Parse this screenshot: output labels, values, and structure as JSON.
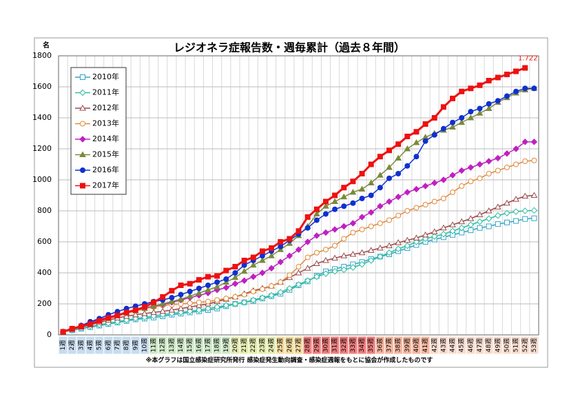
{
  "chart_data": {
    "type": "line",
    "title": "レジオネラ症報告数・週毎累計（過去８年間）",
    "y_unit": "名",
    "footnote": "※本グラフは国立感染症研究所発行 感染症発生動向調査・感染症週報をもとに協会が作成したものです",
    "categories": [
      "1週",
      "2週",
      "3週",
      "4週",
      "5週",
      "6週",
      "7週",
      "8週",
      "9週",
      "10週",
      "11週",
      "12週",
      "13週",
      "14週",
      "15週",
      "16週",
      "17週",
      "18週",
      "19週",
      "20週",
      "21週",
      "22週",
      "23週",
      "24週",
      "25週",
      "26週",
      "27週",
      "28週",
      "29週",
      "30週",
      "31週",
      "32週",
      "33週",
      "34週",
      "35週",
      "36週",
      "37週",
      "38週",
      "39週",
      "40週",
      "41週",
      "42週",
      "43週",
      "44週",
      "45週",
      "46週",
      "47週",
      "48週",
      "49週",
      "50週",
      "51週",
      "52週",
      "53週"
    ],
    "ylim": [
      0,
      1800
    ],
    "yticks": [
      0,
      200,
      400,
      600,
      800,
      1000,
      1200,
      1400,
      1600,
      1800
    ],
    "grid": true,
    "legend": "upper left",
    "series": [
      {
        "name": "2010年",
        "color": "#33a6c8",
        "marker": "square",
        "filled": false,
        "values": [
          20,
          30,
          40,
          50,
          60,
          70,
          80,
          90,
          100,
          105,
          112,
          120,
          130,
          137,
          145,
          152,
          160,
          170,
          185,
          200,
          210,
          220,
          235,
          250,
          265,
          290,
          320,
          345,
          380,
          410,
          425,
          440,
          455,
          470,
          490,
          505,
          520,
          540,
          560,
          580,
          600,
          615,
          630,
          645,
          660,
          675,
          690,
          700,
          715,
          725,
          735,
          748,
          752
        ]
      },
      {
        "name": "2011年",
        "color": "#2fbf9f",
        "marker": "diamond",
        "filled": false,
        "values": [
          20,
          30,
          42,
          55,
          65,
          75,
          85,
          95,
          105,
          113,
          122,
          130,
          138,
          145,
          152,
          160,
          170,
          180,
          190,
          200,
          210,
          225,
          240,
          255,
          275,
          300,
          325,
          350,
          375,
          395,
          410,
          420,
          435,
          455,
          480,
          505,
          530,
          555,
          575,
          600,
          620,
          635,
          650,
          670,
          690,
          710,
          730,
          750,
          770,
          785,
          795,
          800,
          803
        ]
      },
      {
        "name": "2012年",
        "color": "#9a4a4a",
        "marker": "triangle",
        "filled": false,
        "values": [
          20,
          35,
          50,
          65,
          80,
          95,
          110,
          120,
          130,
          138,
          145,
          152,
          160,
          170,
          180,
          190,
          200,
          215,
          230,
          245,
          265,
          285,
          300,
          315,
          340,
          370,
          400,
          430,
          460,
          480,
          495,
          510,
          520,
          530,
          545,
          560,
          575,
          595,
          610,
          625,
          645,
          665,
          690,
          710,
          730,
          750,
          775,
          800,
          825,
          850,
          875,
          895,
          900
        ]
      },
      {
        "name": "2013年",
        "color": "#e08a3c",
        "marker": "circle",
        "filled": false,
        "values": [
          20,
          40,
          60,
          80,
          100,
          115,
          125,
          140,
          160,
          170,
          180,
          190,
          195,
          200,
          205,
          210,
          215,
          225,
          235,
          245,
          260,
          280,
          295,
          315,
          340,
          385,
          440,
          500,
          530,
          550,
          575,
          620,
          660,
          680,
          700,
          720,
          740,
          770,
          800,
          820,
          840,
          860,
          880,
          920,
          960,
          990,
          1010,
          1040,
          1060,
          1080,
          1100,
          1120,
          1125
        ]
      },
      {
        "name": "2014年",
        "color": "#c020c0",
        "marker": "diamond",
        "filled": true,
        "values": [
          20,
          40,
          60,
          80,
          100,
          115,
          130,
          145,
          160,
          175,
          185,
          195,
          210,
          225,
          240,
          255,
          270,
          290,
          305,
          330,
          350,
          375,
          400,
          430,
          470,
          510,
          550,
          600,
          640,
          660,
          680,
          700,
          720,
          760,
          790,
          830,
          860,
          890,
          920,
          940,
          960,
          980,
          1000,
          1030,
          1060,
          1080,
          1100,
          1120,
          1140,
          1170,
          1200,
          1245,
          1245
        ]
      },
      {
        "name": "2015年",
        "color": "#7a8a3a",
        "marker": "triangle",
        "filled": true,
        "values": [
          20,
          40,
          60,
          75,
          90,
          105,
          125,
          140,
          155,
          170,
          185,
          200,
          215,
          230,
          250,
          270,
          290,
          310,
          340,
          370,
          410,
          450,
          480,
          510,
          550,
          590,
          640,
          700,
          780,
          830,
          860,
          890,
          920,
          940,
          980,
          1030,
          1080,
          1140,
          1200,
          1240,
          1275,
          1300,
          1320,
          1340,
          1370,
          1400,
          1430,
          1460,
          1500,
          1530,
          1560,
          1580,
          1590
        ]
      },
      {
        "name": "2016年",
        "color": "#1030d0",
        "marker": "circle",
        "filled": true,
        "values": [
          20,
          40,
          60,
          85,
          105,
          130,
          150,
          170,
          185,
          200,
          215,
          225,
          240,
          260,
          280,
          300,
          320,
          340,
          360,
          400,
          450,
          480,
          510,
          540,
          570,
          610,
          650,
          690,
          740,
          780,
          810,
          830,
          850,
          880,
          900,
          950,
          1010,
          1040,
          1090,
          1150,
          1250,
          1290,
          1330,
          1370,
          1400,
          1440,
          1460,
          1490,
          1510,
          1540,
          1570,
          1590,
          1590
        ]
      },
      {
        "name": "2017年",
        "color": "#ee1111",
        "marker": "square",
        "filled": true,
        "values": [
          20,
          40,
          55,
          70,
          90,
          110,
          125,
          145,
          160,
          180,
          210,
          245,
          285,
          320,
          330,
          355,
          375,
          380,
          415,
          440,
          480,
          500,
          540,
          560,
          600,
          620,
          670,
          760,
          810,
          860,
          900,
          950,
          990,
          1040,
          1100,
          1150,
          1190,
          1230,
          1280,
          1310,
          1360,
          1400,
          1470,
          1525,
          1570,
          1590,
          1610,
          1640,
          1660,
          1680,
          1700,
          1722,
          null
        ],
        "value_labels": [
          null,
          null,
          null,
          null,
          null,
          null,
          null,
          null,
          null,
          null,
          null,
          null,
          null,
          null,
          null,
          null,
          null,
          null,
          null,
          null,
          null,
          null,
          null,
          null,
          null,
          null,
          null,
          null,
          null,
          null,
          null,
          null,
          null,
          null,
          null,
          null,
          null,
          null,
          null,
          null,
          null,
          null,
          null,
          null,
          null,
          null,
          null,
          null,
          null,
          null,
          null,
          "1.722",
          null
        ]
      }
    ]
  }
}
